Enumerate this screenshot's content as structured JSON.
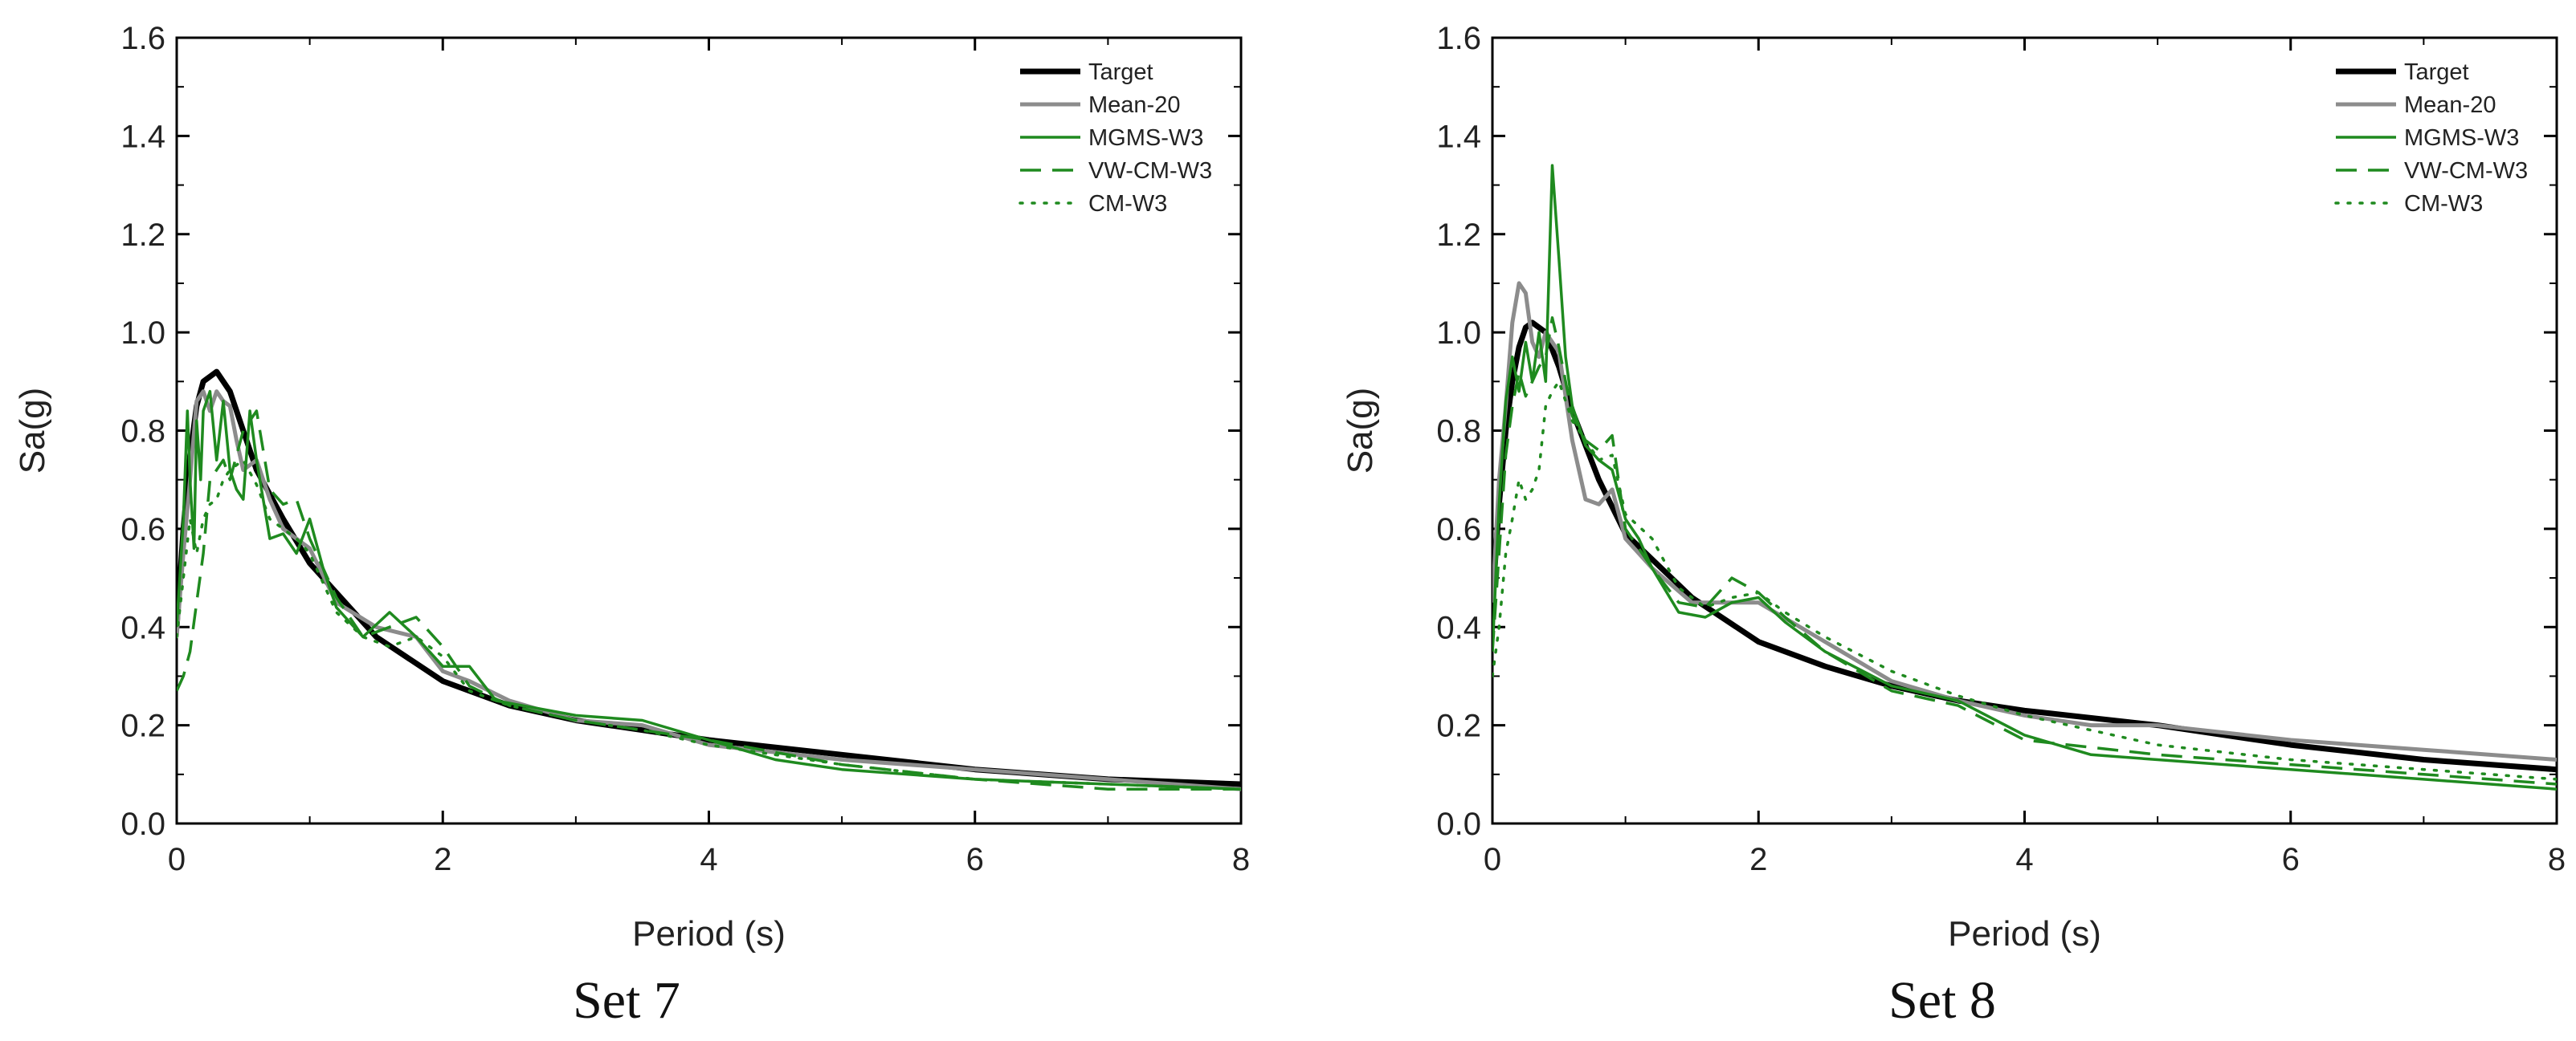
{
  "chart_data": [
    {
      "type": "line",
      "caption": "Set 7",
      "title": "",
      "xlabel": "Period (s)",
      "ylabel": "Sa(g)",
      "xlim": [
        0,
        8
      ],
      "ylim": [
        0,
        1.6
      ],
      "xticks": [
        0,
        2,
        4,
        6,
        8
      ],
      "yticks": [
        0.0,
        0.2,
        0.4,
        0.6,
        0.8,
        1.0,
        1.2,
        1.4,
        1.6
      ],
      "xtick_labels": [
        "0",
        "2",
        "4",
        "6",
        "8"
      ],
      "ytick_labels": [
        "0.0",
        "0.2",
        "0.4",
        "0.6",
        "0.8",
        "1.0",
        "1.2",
        "1.4",
        "1.6"
      ],
      "legend_position": "top-right",
      "grid": false,
      "series": [
        {
          "name": "Target",
          "color": "#000000",
          "dash": "solid",
          "x": [
            0,
            0.05,
            0.1,
            0.15,
            0.2,
            0.25,
            0.3,
            0.4,
            0.5,
            0.6,
            0.8,
            1.0,
            1.5,
            2.0,
            2.5,
            3.0,
            3.5,
            4.0,
            5.0,
            6.0,
            7.0,
            8.0
          ],
          "y": [
            0.4,
            0.6,
            0.75,
            0.85,
            0.9,
            0.91,
            0.92,
            0.88,
            0.8,
            0.72,
            0.62,
            0.53,
            0.38,
            0.29,
            0.24,
            0.21,
            0.19,
            0.17,
            0.14,
            0.11,
            0.09,
            0.08
          ]
        },
        {
          "name": "Mean-20",
          "color": "#8c8c8c",
          "dash": "solid",
          "x": [
            0,
            0.05,
            0.1,
            0.15,
            0.2,
            0.25,
            0.3,
            0.35,
            0.4,
            0.45,
            0.5,
            0.6,
            0.7,
            0.8,
            1.0,
            1.2,
            1.5,
            1.8,
            2.0,
            2.2,
            2.5,
            3.0,
            3.5,
            4.0,
            5.0,
            6.0,
            7.0,
            8.0
          ],
          "y": [
            0.38,
            0.55,
            0.7,
            0.86,
            0.88,
            0.84,
            0.88,
            0.86,
            0.85,
            0.78,
            0.72,
            0.74,
            0.66,
            0.6,
            0.56,
            0.45,
            0.4,
            0.38,
            0.31,
            0.29,
            0.25,
            0.21,
            0.2,
            0.16,
            0.13,
            0.11,
            0.09,
            0.07
          ]
        },
        {
          "name": "MGMS-W3",
          "color": "#1f8a1f",
          "dash": "solid",
          "x": [
            0,
            0.05,
            0.08,
            0.1,
            0.13,
            0.15,
            0.18,
            0.2,
            0.25,
            0.3,
            0.35,
            0.4,
            0.45,
            0.5,
            0.55,
            0.6,
            0.7,
            0.8,
            0.9,
            1.0,
            1.1,
            1.2,
            1.4,
            1.6,
            1.8,
            2.0,
            2.2,
            2.4,
            2.6,
            3.0,
            3.5,
            4.0,
            4.5,
            5.0,
            6.0,
            7.0,
            8.0
          ],
          "y": [
            0.4,
            0.62,
            0.84,
            0.7,
            0.56,
            0.82,
            0.7,
            0.84,
            0.88,
            0.74,
            0.86,
            0.72,
            0.68,
            0.66,
            0.84,
            0.74,
            0.58,
            0.59,
            0.55,
            0.62,
            0.52,
            0.44,
            0.38,
            0.43,
            0.38,
            0.32,
            0.32,
            0.25,
            0.24,
            0.22,
            0.21,
            0.17,
            0.13,
            0.11,
            0.09,
            0.08,
            0.07
          ]
        },
        {
          "name": "VW-CM-W3",
          "color": "#1f8a1f",
          "dash": "dashed",
          "x": [
            0,
            0.05,
            0.1,
            0.15,
            0.2,
            0.25,
            0.3,
            0.35,
            0.4,
            0.5,
            0.6,
            0.7,
            0.8,
            0.9,
            1.0,
            1.2,
            1.4,
            1.6,
            1.8,
            2.0,
            2.2,
            2.5,
            3.0,
            3.5,
            4.0,
            5.0,
            6.0,
            7.0,
            8.0
          ],
          "y": [
            0.27,
            0.3,
            0.35,
            0.45,
            0.55,
            0.7,
            0.72,
            0.74,
            0.7,
            0.8,
            0.84,
            0.68,
            0.65,
            0.66,
            0.58,
            0.46,
            0.38,
            0.4,
            0.42,
            0.36,
            0.28,
            0.24,
            0.21,
            0.19,
            0.17,
            0.12,
            0.09,
            0.07,
            0.07
          ]
        },
        {
          "name": "CM-W3",
          "color": "#1f8a1f",
          "dash": "dotted",
          "x": [
            0,
            0.05,
            0.1,
            0.15,
            0.2,
            0.25,
            0.3,
            0.35,
            0.4,
            0.5,
            0.6,
            0.7,
            0.8,
            0.9,
            1.0,
            1.2,
            1.4,
            1.6,
            1.8,
            2.0,
            2.2,
            2.5,
            3.0,
            3.5,
            4.0,
            5.0,
            6.0,
            7.0,
            8.0
          ],
          "y": [
            0.38,
            0.5,
            0.62,
            0.55,
            0.62,
            0.65,
            0.66,
            0.7,
            0.72,
            0.74,
            0.69,
            0.62,
            0.6,
            0.58,
            0.55,
            0.43,
            0.38,
            0.36,
            0.38,
            0.34,
            0.27,
            0.24,
            0.21,
            0.19,
            0.16,
            0.12,
            0.09,
            0.08,
            0.07
          ]
        }
      ]
    },
    {
      "type": "line",
      "caption": "Set 8",
      "title": "",
      "xlabel": "Period (s)",
      "ylabel": "Sa(g)",
      "xlim": [
        0,
        8
      ],
      "ylim": [
        0,
        1.6
      ],
      "xticks": [
        0,
        2,
        4,
        6,
        8
      ],
      "yticks": [
        0.0,
        0.2,
        0.4,
        0.6,
        0.8,
        1.0,
        1.2,
        1.4,
        1.6
      ],
      "xtick_labels": [
        "0",
        "2",
        "4",
        "6",
        "8"
      ],
      "ytick_labels": [
        "0.0",
        "0.2",
        "0.4",
        "0.6",
        "0.8",
        "1.0",
        "1.2",
        "1.4",
        "1.6"
      ],
      "legend_position": "top-right",
      "grid": false,
      "series": [
        {
          "name": "Target",
          "color": "#000000",
          "dash": "solid",
          "x": [
            0,
            0.05,
            0.1,
            0.15,
            0.2,
            0.25,
            0.3,
            0.4,
            0.5,
            0.6,
            0.8,
            1.0,
            1.5,
            2.0,
            2.5,
            3.0,
            3.5,
            4.0,
            5.0,
            6.0,
            7.0,
            8.0
          ],
          "y": [
            0.45,
            0.65,
            0.8,
            0.9,
            0.97,
            1.01,
            1.02,
            1.0,
            0.93,
            0.84,
            0.7,
            0.59,
            0.46,
            0.37,
            0.32,
            0.28,
            0.25,
            0.23,
            0.2,
            0.16,
            0.13,
            0.11
          ]
        },
        {
          "name": "Mean-20",
          "color": "#8c8c8c",
          "dash": "solid",
          "x": [
            0,
            0.05,
            0.1,
            0.15,
            0.2,
            0.25,
            0.3,
            0.35,
            0.4,
            0.5,
            0.6,
            0.7,
            0.8,
            0.9,
            1.0,
            1.2,
            1.5,
            2.0,
            2.5,
            3.0,
            3.5,
            4.0,
            4.5,
            5.0,
            6.0,
            7.0,
            8.0
          ],
          "y": [
            0.45,
            0.7,
            0.85,
            1.02,
            1.1,
            1.08,
            0.98,
            0.95,
            1.0,
            0.96,
            0.78,
            0.66,
            0.65,
            0.68,
            0.58,
            0.52,
            0.45,
            0.45,
            0.37,
            0.29,
            0.25,
            0.22,
            0.2,
            0.2,
            0.17,
            0.15,
            0.13
          ]
        },
        {
          "name": "MGMS-W3",
          "color": "#1f8a1f",
          "dash": "solid",
          "x": [
            0,
            0.05,
            0.1,
            0.15,
            0.2,
            0.25,
            0.3,
            0.35,
            0.4,
            0.45,
            0.5,
            0.55,
            0.6,
            0.7,
            0.8,
            0.9,
            1.0,
            1.1,
            1.2,
            1.4,
            1.6,
            1.8,
            2.0,
            2.2,
            2.5,
            3.0,
            3.5,
            4.0,
            4.5,
            5.0,
            6.0,
            7.0,
            8.0
          ],
          "y": [
            0.35,
            0.65,
            0.86,
            0.95,
            0.88,
            0.98,
            0.9,
            1.0,
            0.9,
            1.34,
            1.15,
            0.95,
            0.85,
            0.77,
            0.74,
            0.72,
            0.62,
            0.58,
            0.52,
            0.43,
            0.42,
            0.45,
            0.46,
            0.41,
            0.35,
            0.28,
            0.25,
            0.18,
            0.14,
            0.13,
            0.11,
            0.09,
            0.07
          ]
        },
        {
          "name": "VW-CM-W3",
          "color": "#1f8a1f",
          "dash": "dashed",
          "x": [
            0,
            0.05,
            0.1,
            0.15,
            0.2,
            0.25,
            0.3,
            0.35,
            0.4,
            0.45,
            0.5,
            0.6,
            0.7,
            0.8,
            0.9,
            1.0,
            1.2,
            1.4,
            1.6,
            1.8,
            2.0,
            2.2,
            2.5,
            3.0,
            3.5,
            4.0,
            5.0,
            6.0,
            7.0,
            8.0
          ],
          "y": [
            0.35,
            0.55,
            0.75,
            0.85,
            0.92,
            0.87,
            0.9,
            0.93,
            0.95,
            1.03,
            0.97,
            0.83,
            0.78,
            0.76,
            0.79,
            0.6,
            0.52,
            0.45,
            0.44,
            0.5,
            0.47,
            0.42,
            0.35,
            0.27,
            0.24,
            0.17,
            0.14,
            0.12,
            0.1,
            0.08
          ]
        },
        {
          "name": "CM-W3",
          "color": "#1f8a1f",
          "dash": "dotted",
          "x": [
            0,
            0.05,
            0.1,
            0.15,
            0.2,
            0.25,
            0.3,
            0.35,
            0.4,
            0.45,
            0.5,
            0.6,
            0.7,
            0.8,
            0.9,
            1.0,
            1.2,
            1.4,
            1.6,
            1.8,
            2.0,
            2.2,
            2.5,
            3.0,
            3.5,
            4.0,
            5.0,
            6.0,
            7.0,
            8.0
          ],
          "y": [
            0.3,
            0.4,
            0.55,
            0.62,
            0.7,
            0.66,
            0.68,
            0.72,
            0.85,
            0.88,
            0.9,
            0.82,
            0.78,
            0.74,
            0.75,
            0.63,
            0.58,
            0.48,
            0.44,
            0.46,
            0.47,
            0.43,
            0.38,
            0.31,
            0.26,
            0.22,
            0.16,
            0.13,
            0.11,
            0.09
          ]
        }
      ]
    }
  ]
}
